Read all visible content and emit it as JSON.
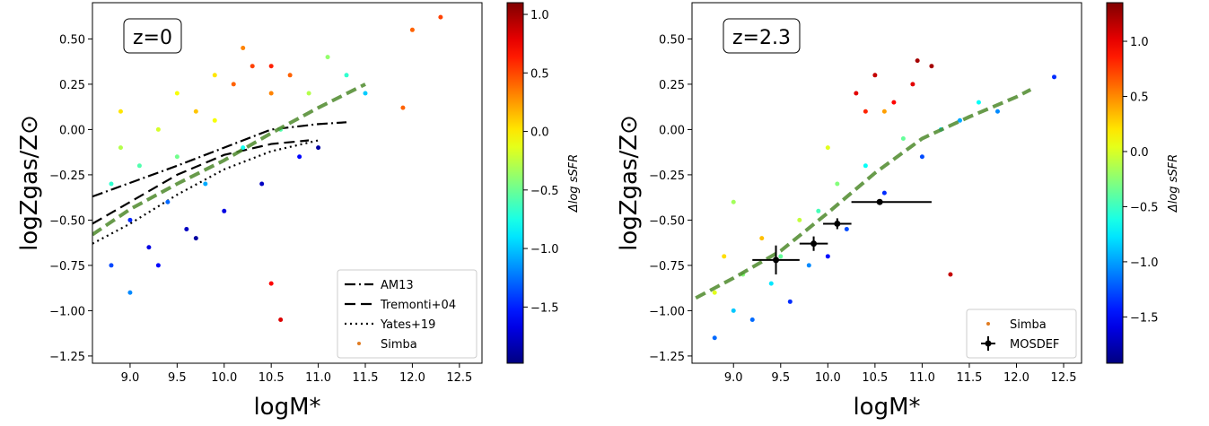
{
  "chart_data": [
    {
      "type": "scatter",
      "annotation": "z=0",
      "xlabel": "logM*",
      "ylabel": "logZgas/Z⊙",
      "xlim": [
        8.6,
        12.74
      ],
      "ylim": [
        -1.29,
        0.7
      ],
      "xticks": [
        {
          "value": 9.0,
          "label": "9.0"
        },
        {
          "value": 9.5,
          "label": "9.5"
        },
        {
          "value": 10.0,
          "label": "10.0"
        },
        {
          "value": 10.5,
          "label": "10.5"
        },
        {
          "value": 11.0,
          "label": "11.0"
        },
        {
          "value": 11.5,
          "label": "11.5"
        },
        {
          "value": 12.0,
          "label": "12.0"
        },
        {
          "value": 12.5,
          "label": "12.5"
        }
      ],
      "yticks": [
        {
          "value": 0.5,
          "label": "0.50"
        },
        {
          "value": 0.25,
          "label": "0.25"
        },
        {
          "value": 0,
          "label": "0.00"
        },
        {
          "value": -0.25,
          "label": "−0.25"
        },
        {
          "value": -0.5,
          "label": "−0.50"
        },
        {
          "value": -0.75,
          "label": "−0.75"
        },
        {
          "value": -1,
          "label": "−1.00"
        },
        {
          "value": -1.25,
          "label": "−1.25"
        }
      ],
      "colorbar": {
        "label": "Δlog sSFR",
        "lim": [
          -1.98,
          1.1
        ],
        "ticks": [
          {
            "value": 1.0,
            "label": "1.0"
          },
          {
            "value": 0.5,
            "label": "0.5"
          },
          {
            "value": 0.0,
            "label": "0.0"
          },
          {
            "value": -0.5,
            "label": "−0.5"
          },
          {
            "value": -1.0,
            "label": "−1.0"
          },
          {
            "value": -1.5,
            "label": "−1.5"
          }
        ]
      },
      "legend": "lower right",
      "series": [
        {
          "name": "AM13",
          "type": "line",
          "style": "dashdot",
          "color": "#000000",
          "x": [
            8.6,
            9.5,
            10.0,
            10.5,
            11.0,
            11.3
          ],
          "values": [
            -0.37,
            -0.2,
            -0.1,
            0.0,
            0.03,
            0.04
          ]
        },
        {
          "name": "Tremonti+04",
          "type": "line",
          "style": "dashed",
          "color": "#000000",
          "x": [
            8.6,
            9.0,
            9.5,
            10.0,
            10.5,
            10.9
          ],
          "values": [
            -0.52,
            -0.4,
            -0.25,
            -0.14,
            -0.08,
            -0.06
          ]
        },
        {
          "name": "Yates+19",
          "type": "line",
          "style": "dotted",
          "color": "#000000",
          "x": [
            8.6,
            9.0,
            9.5,
            10.0,
            10.5,
            11.0
          ],
          "values": [
            -0.63,
            -0.52,
            -0.36,
            -0.22,
            -0.12,
            -0.06
          ]
        },
        {
          "name": "Simba",
          "type": "points",
          "color": "#e07b20",
          "x": [
            8.8,
            8.9,
            9.0,
            9.1,
            9.2,
            9.3,
            9.4,
            9.5,
            9.6,
            9.7,
            9.8,
            9.9,
            10.0,
            10.1,
            10.2,
            10.3,
            10.4,
            10.5,
            10.6,
            10.7,
            10.8,
            10.9,
            11.0,
            11.1,
            11.3,
            11.5,
            8.8,
            9.0,
            9.3,
            8.9,
            9.7,
            10.2,
            10.5,
            12.0,
            12.3,
            11.9,
            10.5,
            10.6,
            9.9,
            9.5
          ],
          "values": [
            -0.3,
            -0.1,
            -0.5,
            -0.2,
            -0.65,
            0.0,
            -0.4,
            -0.15,
            -0.55,
            0.1,
            -0.3,
            0.05,
            -0.45,
            0.25,
            -0.1,
            0.35,
            -0.3,
            0.2,
            0.0,
            0.3,
            -0.15,
            0.2,
            -0.1,
            0.4,
            0.3,
            0.2,
            -0.75,
            -0.9,
            -0.75,
            0.1,
            -0.6,
            0.45,
            0.35,
            0.55,
            0.62,
            0.12,
            -0.85,
            -1.05,
            0.3,
            0.2
          ],
          "c": [
            -0.2,
            -0.6,
            0.6,
            -0.3,
            0.8,
            -0.7,
            0.4,
            -0.4,
            0.9,
            -1.0,
            0.2,
            -0.8,
            0.8,
            -1.3,
            -0.1,
            -1.4,
            0.9,
            -1.2,
            -0.3,
            -1.3,
            0.7,
            -0.6,
            1.0,
            -0.5,
            -0.2,
            0.1,
            0.5,
            0.3,
            0.7,
            -0.9,
            1.0,
            -1.2,
            -1.5,
            -1.3,
            -1.4,
            -1.3,
            -1.6,
            -1.7,
            -0.9,
            -0.8
          ]
        },
        {
          "type": "line",
          "style": "dashed",
          "color": "#4d8a2b",
          "x": [
            8.6,
            9.0,
            9.5,
            10.0,
            10.5,
            11.0,
            11.5
          ],
          "values": [
            -0.58,
            -0.44,
            -0.3,
            -0.17,
            -0.02,
            0.12,
            0.25
          ]
        }
      ]
    },
    {
      "type": "scatter",
      "annotation": "z=2.3",
      "xlabel": "logM*",
      "ylabel": "logZgas/Z⊙",
      "xlim": [
        8.56,
        12.69
      ],
      "ylim": [
        -1.29,
        0.7
      ],
      "xticks": [
        {
          "value": 9.0,
          "label": "9.0"
        },
        {
          "value": 9.5,
          "label": "9.5"
        },
        {
          "value": 10.0,
          "label": "10.0"
        },
        {
          "value": 10.5,
          "label": "10.5"
        },
        {
          "value": 11.0,
          "label": "11.0"
        },
        {
          "value": 11.5,
          "label": "11.5"
        },
        {
          "value": 12.0,
          "label": "12.0"
        },
        {
          "value": 12.5,
          "label": "12.5"
        }
      ],
      "yticks": [
        {
          "value": 0.5,
          "label": "0.50"
        },
        {
          "value": 0.25,
          "label": "0.25"
        },
        {
          "value": 0,
          "label": "0.00"
        },
        {
          "value": -0.25,
          "label": "−0.25"
        },
        {
          "value": -0.5,
          "label": "−0.50"
        },
        {
          "value": -0.75,
          "label": "−0.75"
        },
        {
          "value": -1,
          "label": "−1.00"
        },
        {
          "value": -1.25,
          "label": "−1.25"
        }
      ],
      "colorbar": {
        "label": "Δlog sSFR",
        "lim": [
          -1.92,
          1.35
        ],
        "ticks": [
          {
            "value": 1.0,
            "label": "1.0"
          },
          {
            "value": 0.5,
            "label": "0.5"
          },
          {
            "value": 0.0,
            "label": "0.0"
          },
          {
            "value": -0.5,
            "label": "−0.5"
          },
          {
            "value": -1.0,
            "label": "−1.0"
          },
          {
            "value": -1.5,
            "label": "−1.5"
          }
        ]
      },
      "legend": "lower right",
      "series": [
        {
          "name": "Simba",
          "type": "points",
          "color": "#e07b20",
          "x": [
            8.8,
            8.9,
            9.0,
            9.1,
            9.2,
            9.3,
            9.4,
            9.5,
            9.6,
            9.7,
            9.8,
            9.9,
            10.0,
            10.1,
            10.2,
            10.3,
            10.4,
            10.5,
            10.6,
            10.7,
            10.8,
            10.9,
            11.0,
            11.1,
            11.2,
            11.4,
            11.6,
            11.8,
            12.4,
            9.0,
            8.8,
            10.6,
            10.0,
            11.3,
            10.95,
            10.4
          ],
          "values": [
            -0.9,
            -0.7,
            -1.0,
            -0.8,
            -1.05,
            -0.6,
            -0.85,
            -0.7,
            -0.95,
            -0.5,
            -0.75,
            -0.45,
            -0.7,
            -0.3,
            -0.55,
            0.2,
            -0.2,
            0.3,
            -0.35,
            0.15,
            -0.05,
            0.25,
            -0.15,
            0.35,
            0.0,
            0.05,
            0.15,
            0.1,
            0.29,
            -0.4,
            -1.15,
            0.1,
            -0.1,
            -0.8,
            0.38,
            0.1
          ],
          "c": [
            -0.6,
            -0.8,
            0.3,
            -0.3,
            0.6,
            -0.9,
            0.2,
            -0.2,
            0.8,
            -0.5,
            0.5,
            -0.1,
            0.9,
            -0.3,
            0.7,
            -1.6,
            0.1,
            -1.7,
            0.8,
            -1.5,
            -0.2,
            -1.6,
            0.7,
            -1.8,
            0.2,
            0.4,
            0.1,
            0.5,
            0.8,
            -0.4,
            0.6,
            -1.0,
            -0.6,
            -1.7,
            -1.8,
            -1.4
          ]
        },
        {
          "type": "line",
          "style": "dashed",
          "color": "#4d8a2b",
          "x": [
            8.6,
            9.0,
            9.5,
            10.0,
            10.5,
            11.0,
            11.5,
            12.0,
            12.15
          ],
          "values": [
            -0.93,
            -0.82,
            -0.67,
            -0.46,
            -0.24,
            -0.05,
            0.07,
            0.18,
            0.22
          ]
        },
        {
          "name": "MOSDEF",
          "type": "errorbar",
          "color": "#000000",
          "x": [
            9.45,
            9.85,
            10.1,
            10.55
          ],
          "values": [
            -0.72,
            -0.63,
            -0.52,
            -0.4
          ],
          "xerr_low": [
            0.25,
            0.15,
            0.15,
            0.3
          ],
          "xerr_high": [
            0.25,
            0.15,
            0.15,
            0.55
          ],
          "yerr": [
            0.08,
            0.04,
            0.03,
            0.01
          ]
        }
      ]
    }
  ]
}
